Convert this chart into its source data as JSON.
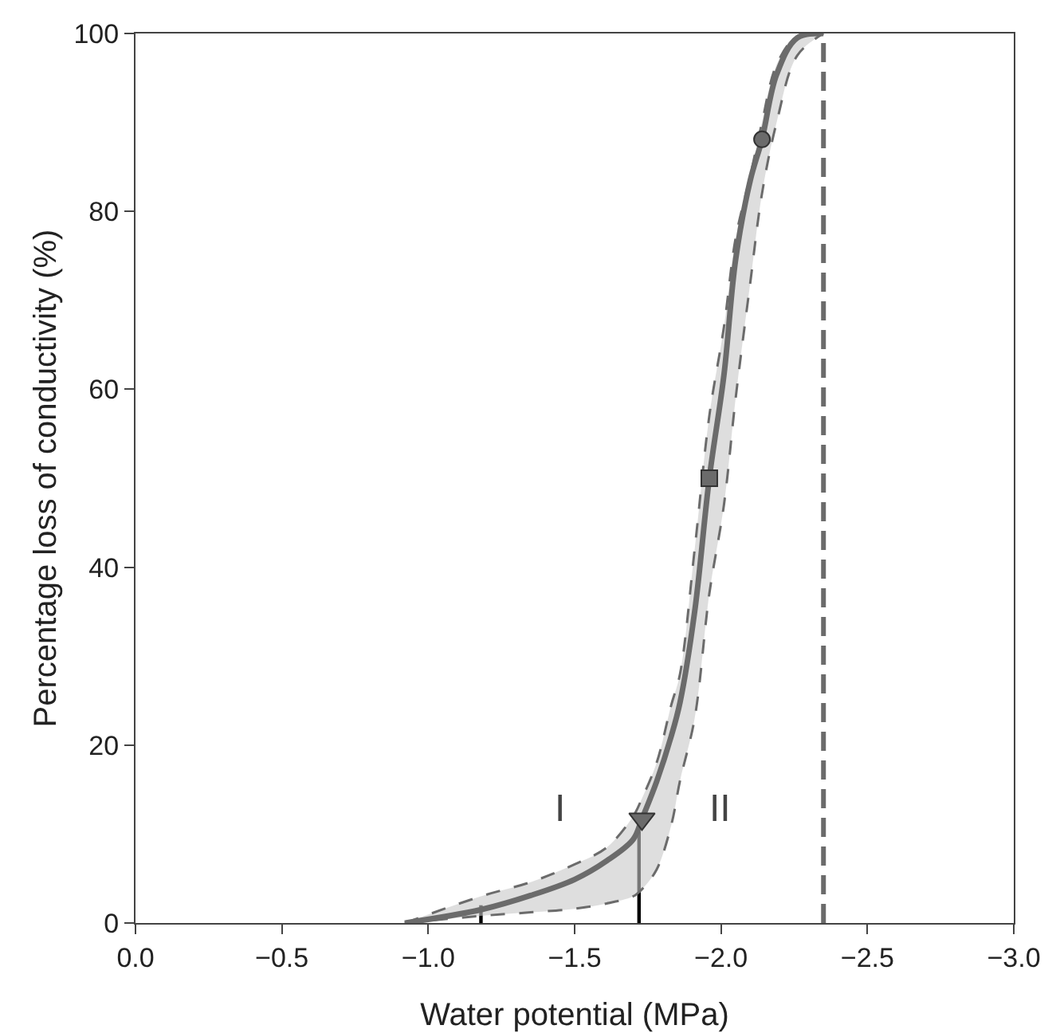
{
  "chart_data": {
    "type": "line",
    "xlabel": "Water potential (MPa)",
    "ylabel": "Percentage loss of conductivity (%)",
    "xlim": [
      0,
      -3
    ],
    "ylim": [
      0,
      100
    ],
    "xticks": [
      {
        "value": 0,
        "label": "0.0"
      },
      {
        "value": -0.5,
        "label": "−0.5"
      },
      {
        "value": -1,
        "label": "−1.0"
      },
      {
        "value": -1.5,
        "label": "−1.5"
      },
      {
        "value": -2,
        "label": "−2.0"
      },
      {
        "value": -2.5,
        "label": "−2.5"
      },
      {
        "value": -3,
        "label": "−3.0"
      }
    ],
    "yticks": [
      0,
      20,
      40,
      60,
      80,
      100
    ],
    "grid": false,
    "series": [
      {
        "color": "#6b6b6b",
        "marker": "none",
        "line_style": "solid",
        "x": [
          -0.92,
          -1.18,
          -1.35,
          -1.5,
          -1.61,
          -1.7,
          -1.73,
          -1.78,
          -1.83,
          -1.86,
          -1.91,
          -1.96,
          -2.01,
          -2.05,
          -2.1,
          -2.14,
          -2.19,
          -2.26,
          -2.35
        ],
        "values": [
          0,
          1.5,
          3.1,
          4.9,
          7,
          9.4,
          11.7,
          15.9,
          21,
          24.8,
          35,
          50,
          61.6,
          74.6,
          83.5,
          88.1,
          95.4,
          99.5,
          100
        ],
        "upper": [
          0,
          3,
          4.6,
          6.6,
          8.5,
          12,
          14,
          18,
          24.5,
          28,
          42,
          57,
          67,
          77,
          84,
          90,
          96.5,
          99.7,
          100
        ],
        "lower": [
          0,
          0.8,
          1.2,
          1.6,
          2.2,
          3,
          3.8,
          6,
          11,
          16,
          23,
          37,
          47,
          59,
          72,
          82,
          90,
          97.5,
          100
        ]
      },
      {
        "type": "scatter",
        "color": "#6b6b6b",
        "marker": "triangle",
        "x": [
          -1.73
        ],
        "values": [
          11.7
        ]
      },
      {
        "type": "scatter",
        "color": "#6b6b6b",
        "marker": "square",
        "x": [
          -1.96
        ],
        "values": [
          50
        ]
      },
      {
        "type": "scatter",
        "color": "#6b6b6b",
        "marker": "circle",
        "x": [
          -2.14
        ],
        "values": [
          88.1
        ]
      },
      {
        "type": "bar",
        "color": "#000000",
        "x": [
          -1.18,
          -1.72
        ],
        "values": [
          2,
          10.3
        ]
      }
    ],
    "ref_lines": [
      {
        "axis": "x",
        "value": -2.35,
        "color": "#6b6b6b",
        "line_style": "dashed"
      }
    ],
    "annotations": [
      "I",
      "II"
    ]
  }
}
